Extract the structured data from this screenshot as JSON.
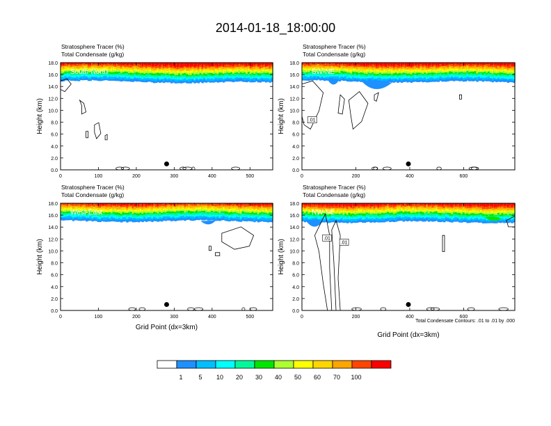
{
  "page_title": "2014-01-18_18:00:00",
  "panel_header": {
    "line1": "Stratosphere Tracer   (%)",
    "line2": "Total Condensate   (g/kg)"
  },
  "contour_note": "Total Condensate Contours: .01 to .01 by .000",
  "colors": {
    "scale": [
      "#ffffff",
      "#1e90ff",
      "#00bfff",
      "#00ffff",
      "#00fa9a",
      "#00e600",
      "#adff2f",
      "#ffff00",
      "#ffd700",
      "#ffa500",
      "#ff4500",
      "#ff0000"
    ]
  },
  "chart_data": [
    {
      "type": "heatmap",
      "panel_label": "South-North",
      "title": "Stratosphere Tracer (%)",
      "subtitle": "Total Condensate (g/kg)",
      "ylabel": "Height (km)",
      "xlabel": "",
      "xlim": [
        0,
        560
      ],
      "ylim": [
        0,
        18
      ],
      "xticks": [
        "0",
        "100",
        "200",
        "300",
        "400",
        "500"
      ],
      "yticks": [
        "0.0",
        "2.0",
        "4.0",
        "6.0",
        "8.0",
        "10.0",
        "12.0",
        "14.0",
        "16.0",
        "18.0"
      ],
      "marker_x": 280,
      "tracer_band_km": {
        "base_left": 14.9,
        "base_right": 14.6,
        "full_at": 17.0
      }
    },
    {
      "type": "heatmap",
      "panel_label": "SW-NE",
      "title": "Stratosphere Tracer (%)",
      "subtitle": "Total Condensate (g/kg)",
      "ylabel": "Height (km)",
      "xlabel": "",
      "xlim": [
        0,
        790
      ],
      "ylim": [
        0,
        18
      ],
      "xticks": [
        "0",
        "200",
        "400",
        "600"
      ],
      "yticks": [
        "0.0",
        "2.0",
        "4.0",
        "6.0",
        "8.0",
        "10.0",
        "12.0",
        "14.0",
        "16.0",
        "18.0"
      ],
      "marker_x": 395,
      "contour_labels": [
        ".01"
      ],
      "tracer_band_km": {
        "base_left": 14.9,
        "base_right": 14.7,
        "full_at": 17.0
      }
    },
    {
      "type": "heatmap",
      "panel_label": "West-East",
      "title": "Stratosphere Tracer (%)",
      "subtitle": "Total Condensate (g/kg)",
      "ylabel": "Height (km)",
      "xlabel": "Grid Point (dx=3km)",
      "xlim": [
        0,
        560
      ],
      "ylim": [
        0,
        18
      ],
      "xticks": [
        "0",
        "100",
        "200",
        "300",
        "400",
        "500"
      ],
      "yticks": [
        "0.0",
        "2.0",
        "4.0",
        "6.0",
        "8.0",
        "10.0",
        "12.0",
        "14.0",
        "16.0",
        "18.0"
      ],
      "marker_x": 280,
      "tracer_band_km": {
        "base_left": 15.0,
        "base_right": 15.0,
        "full_at": 17.0
      }
    },
    {
      "type": "heatmap",
      "panel_label": "NW-SE",
      "title": "Stratosphere Tracer (%)",
      "subtitle": "Total Condensate (g/kg)",
      "ylabel": "Height (km)",
      "xlabel": "Grid Point (dx=3km)",
      "xlim": [
        0,
        790
      ],
      "ylim": [
        0,
        18
      ],
      "xticks": [
        "0",
        "200",
        "400",
        "600"
      ],
      "yticks": [
        "0.0",
        "2.0",
        "4.0",
        "6.0",
        "8.0",
        "10.0",
        "12.0",
        "14.0",
        "16.0",
        "18.0"
      ],
      "marker_x": 395,
      "contour_labels": [
        ".01",
        ".01"
      ],
      "tracer_band_km": {
        "base_left": 14.9,
        "base_right": 14.8,
        "full_at": 17.0
      }
    }
  ],
  "legend": {
    "labels": [
      "1",
      "5",
      "10",
      "20",
      "30",
      "40",
      "50",
      "60",
      "70",
      "100"
    ]
  }
}
